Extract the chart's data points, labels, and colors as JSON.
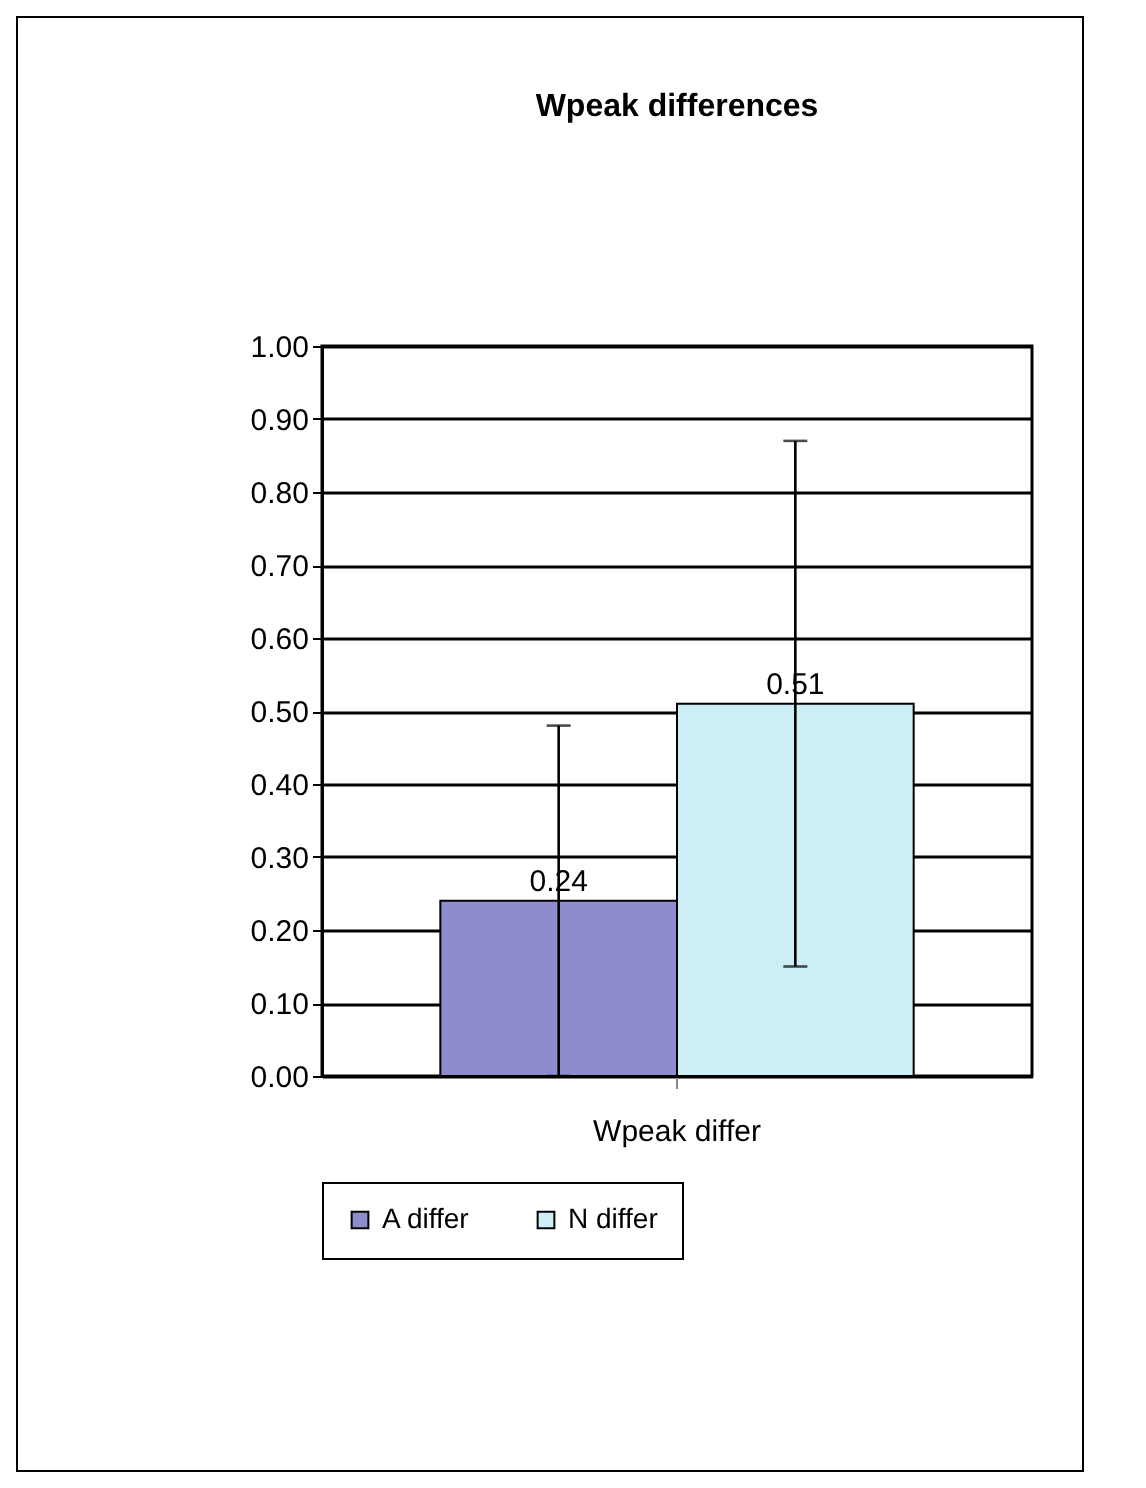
{
  "chart_data": {
    "type": "bar",
    "title": "Wpeak differences",
    "categories": [
      "Wpeak differ"
    ],
    "series": [
      {
        "name": "A differ",
        "color": "#8e8ccc",
        "values": [
          0.24
        ],
        "errors": [
          0.24
        ]
      },
      {
        "name": "N differ",
        "color": "#cdeef5",
        "values": [
          0.51
        ],
        "errors": [
          0.36
        ]
      }
    ],
    "ylim": [
      0,
      1
    ],
    "yticks": [
      {
        "value": 0,
        "label": "0.00"
      },
      {
        "value": 0.1,
        "label": "0.10"
      },
      {
        "value": 0.2,
        "label": "0.20"
      },
      {
        "value": 0.3,
        "label": "0.30"
      },
      {
        "value": 0.4,
        "label": "0.40"
      },
      {
        "value": 0.5,
        "label": "0.50"
      },
      {
        "value": 0.6,
        "label": "0.60"
      },
      {
        "value": 0.7,
        "label": "0.70"
      },
      {
        "value": 0.8,
        "label": "0.80"
      },
      {
        "value": 0.9,
        "label": "0.90"
      },
      {
        "value": 1,
        "label": "1.00"
      }
    ],
    "grid": true,
    "legend": "bottom",
    "data_labels": true
  }
}
